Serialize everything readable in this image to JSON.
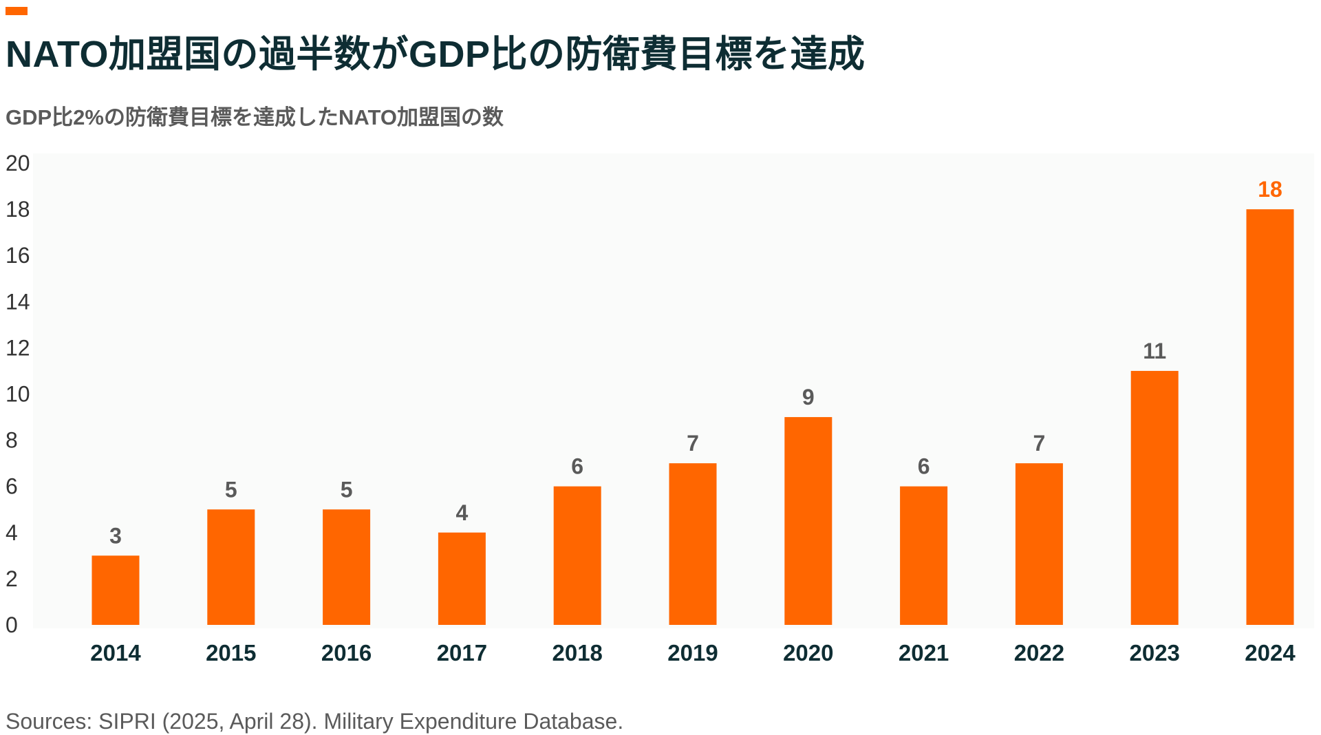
{
  "header": {
    "title": "NATO加盟国の過半数がGDP比の防衛費目標を達成",
    "subtitle": "GDP比2%の防衛費目標を達成したNATO加盟国の数"
  },
  "footer": {
    "source": "Sources: SIPRI (2025, April 28). Military Expenditure Database."
  },
  "colors": {
    "accent": "#ff6600",
    "bar": "#ff6600",
    "highlight_label": "#ff6600",
    "label": "#5a5a5a",
    "axis_text": "#333333",
    "year_text": "#0e2d33",
    "plot_bg": "#fafbfa"
  },
  "chart_data": {
    "type": "bar",
    "categories": [
      "2014",
      "2015",
      "2016",
      "2017",
      "2018",
      "2019",
      "2020",
      "2021",
      "2022",
      "2023",
      "2024"
    ],
    "values": [
      3,
      5,
      5,
      4,
      6,
      7,
      9,
      6,
      7,
      11,
      18
    ],
    "yticks": [
      "0",
      "2",
      "4",
      "6",
      "8",
      "10",
      "12",
      "14",
      "16",
      "18",
      "20"
    ],
    "ylim": [
      0,
      20
    ],
    "highlight_index": 10,
    "grid": false,
    "legend": false
  }
}
